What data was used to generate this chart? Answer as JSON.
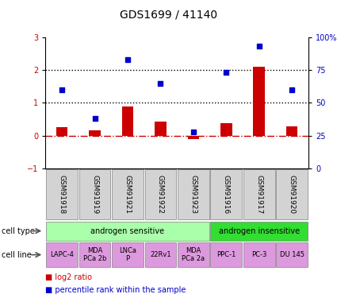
{
  "title": "GDS1699 / 41140",
  "samples": [
    "GSM91918",
    "GSM91919",
    "GSM91921",
    "GSM91922",
    "GSM91923",
    "GSM91916",
    "GSM91917",
    "GSM91920"
  ],
  "log2_ratio": [
    0.25,
    0.15,
    0.9,
    0.42,
    -0.1,
    0.38,
    2.1,
    0.27
  ],
  "percentile_rank": [
    60,
    38,
    83,
    65,
    28,
    73,
    93,
    60
  ],
  "left_ylim": [
    -1,
    3
  ],
  "right_ylim": [
    0,
    100
  ],
  "left_yticks": [
    -1,
    0,
    1,
    2,
    3
  ],
  "right_yticks": [
    0,
    25,
    50,
    75,
    100
  ],
  "right_yticklabels": [
    "0",
    "25",
    "50",
    "75",
    "100%"
  ],
  "cell_types": [
    {
      "label": "androgen sensitive",
      "start": 0,
      "end": 5,
      "color": "#aaffaa"
    },
    {
      "label": "androgen insensitive",
      "start": 5,
      "end": 8,
      "color": "#33dd33"
    }
  ],
  "cell_lines": [
    {
      "label": "LAPC-4",
      "start": 0,
      "end": 1
    },
    {
      "label": "MDA\nPCa 2b",
      "start": 1,
      "end": 2
    },
    {
      "label": "LNCa\nP",
      "start": 2,
      "end": 3
    },
    {
      "label": "22Rv1",
      "start": 3,
      "end": 4
    },
    {
      "label": "MDA\nPCa 2a",
      "start": 4,
      "end": 5
    },
    {
      "label": "PPC-1",
      "start": 5,
      "end": 6
    },
    {
      "label": "PC-3",
      "start": 6,
      "end": 7
    },
    {
      "label": "DU 145",
      "start": 7,
      "end": 8
    }
  ],
  "cell_line_color": "#dd99dd",
  "sample_box_color": "#d3d3d3",
  "bar_color": "#cc0000",
  "dot_color": "#0000cc",
  "hline_color": "#cc0000",
  "dotted_line_color": "#000000",
  "legend_bar_label": "log2 ratio",
  "legend_dot_label": "percentile rank within the sample"
}
